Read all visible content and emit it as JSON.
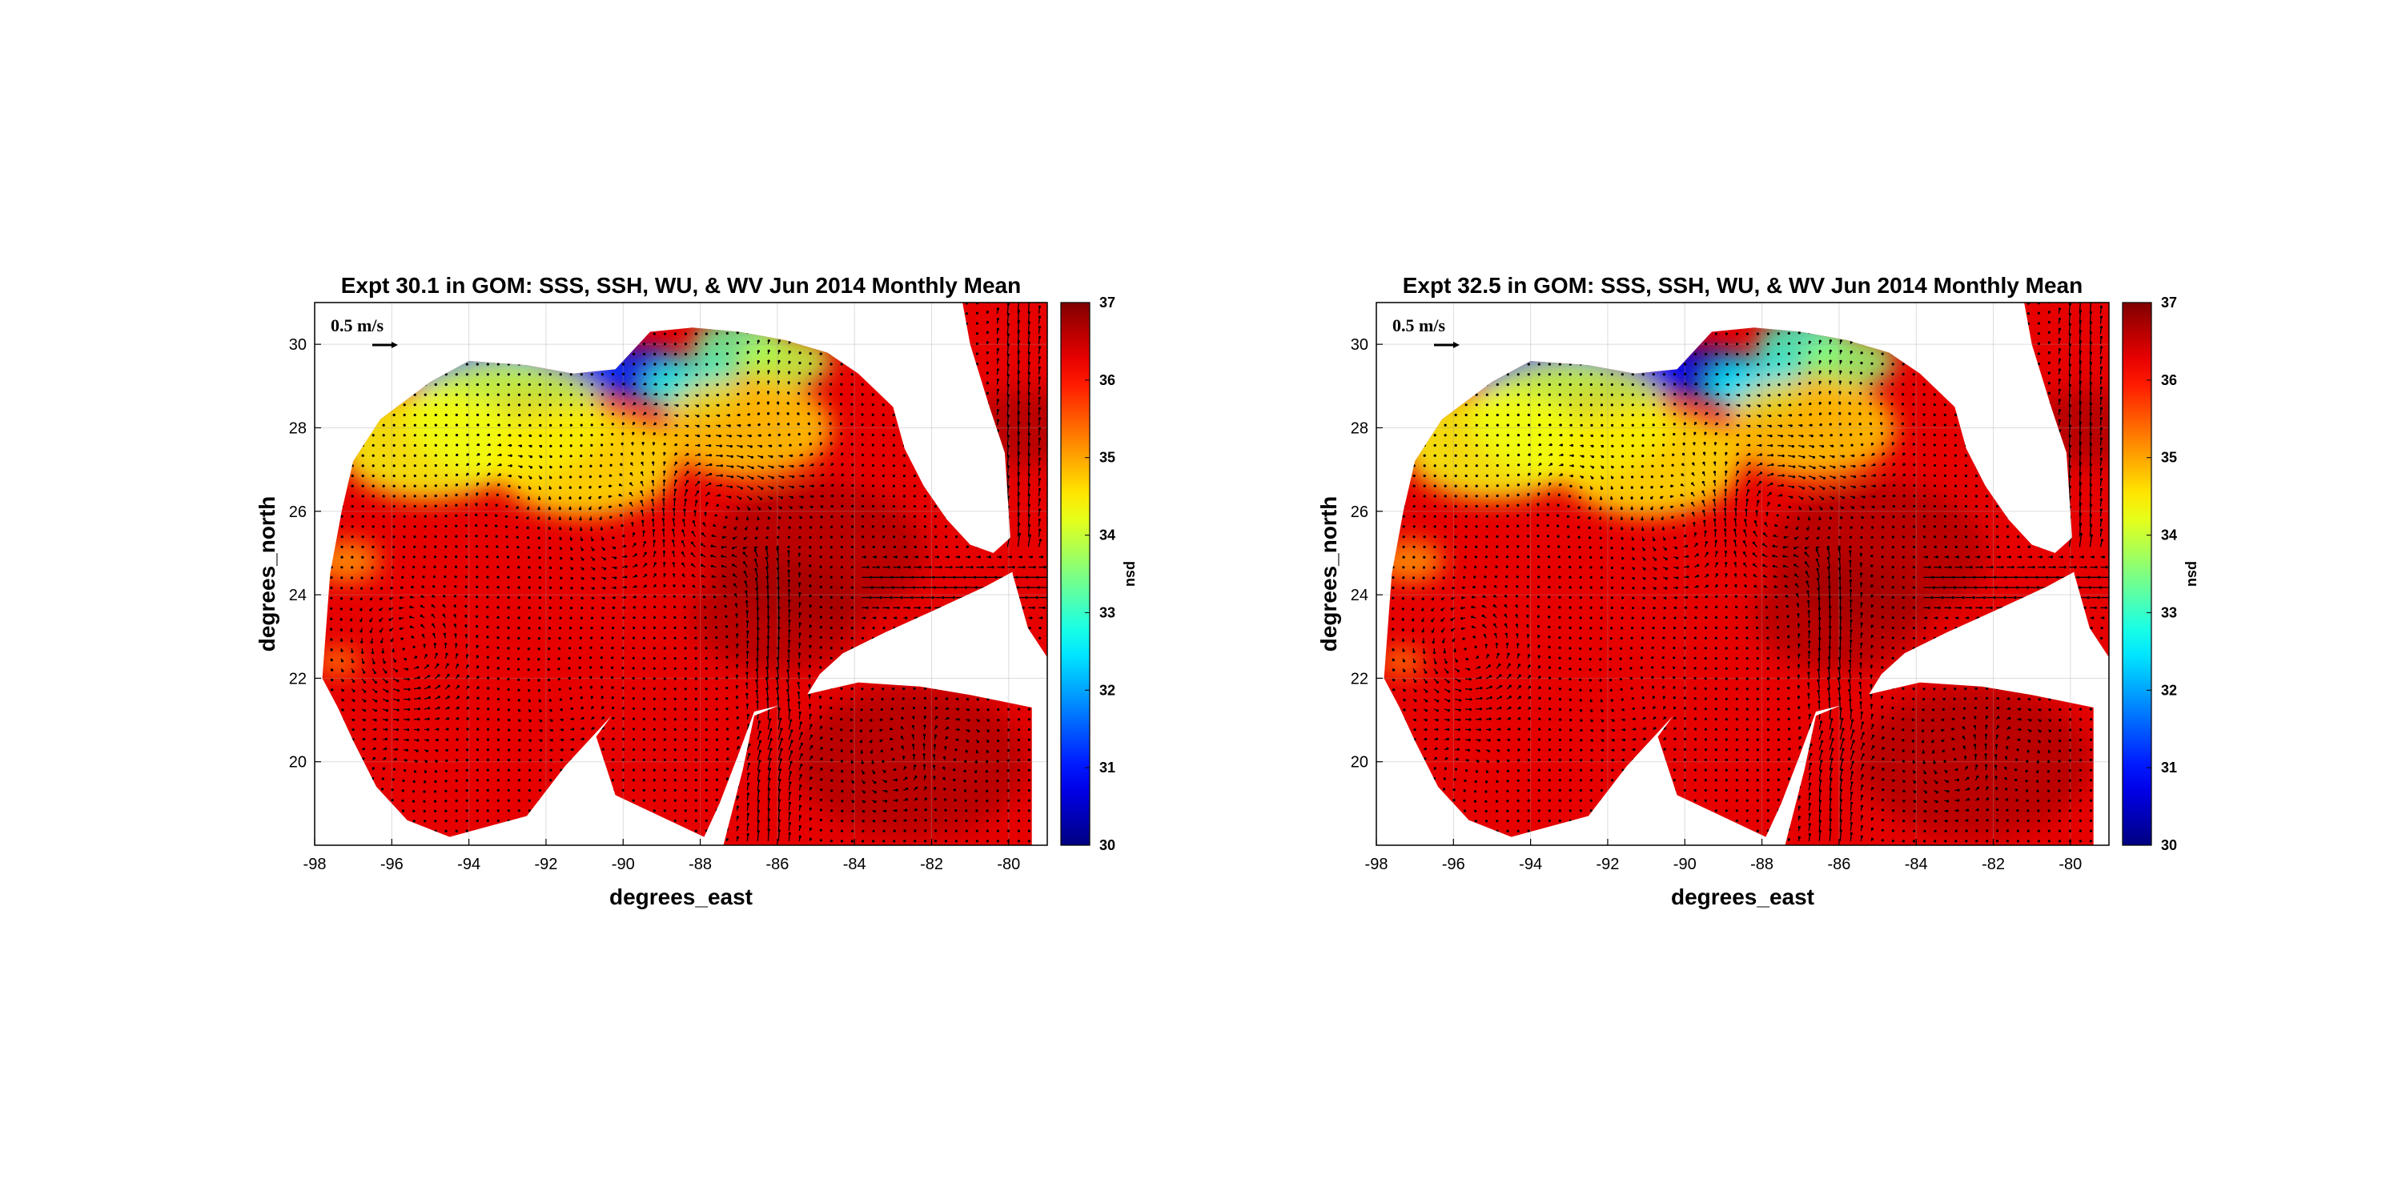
{
  "figure": {
    "colormap": "jet",
    "arrow_color": "#000000",
    "grid": true
  },
  "panels": [
    {
      "title": "Expt 30.1 in GOM: SSS, SSH, WU, & WV Jun 2014 Monthly Mean",
      "xlabel": "degrees_east",
      "ylabel": "degrees_north",
      "colorbar_label": "psu",
      "reference_vector": "0.5 m/s",
      "xticks": [
        "-98",
        "-96",
        "-94",
        "-92",
        "-90",
        "-88",
        "-86",
        "-84",
        "-82",
        "-80"
      ],
      "yticks": [
        "20",
        "22",
        "24",
        "26",
        "28",
        "30"
      ],
      "cticks": [
        "30",
        "31",
        "32",
        "33",
        "34",
        "35",
        "36",
        "37"
      ],
      "xlim": [
        -98,
        -79
      ],
      "ylim": [
        18,
        31
      ],
      "clim": [
        30,
        37
      ]
    },
    {
      "title": "Expt 32.5 in GOM: SSS, SSH, WU, & WV Jun 2014 Monthly Mean",
      "xlabel": "degrees_east",
      "ylabel": "degrees_north",
      "colorbar_label": "psu",
      "reference_vector": "0.5 m/s",
      "xticks": [
        "-98",
        "-96",
        "-94",
        "-92",
        "-90",
        "-88",
        "-86",
        "-84",
        "-82",
        "-80"
      ],
      "yticks": [
        "20",
        "22",
        "24",
        "26",
        "28",
        "30"
      ],
      "cticks": [
        "30",
        "31",
        "32",
        "33",
        "34",
        "35",
        "36",
        "37"
      ],
      "xlim": [
        -98,
        -79
      ],
      "ylim": [
        18,
        31
      ],
      "clim": [
        30,
        37
      ]
    }
  ]
}
